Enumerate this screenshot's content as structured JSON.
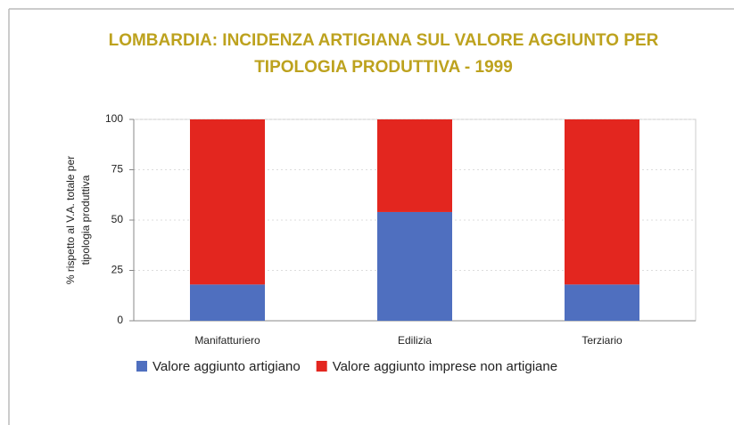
{
  "chart_data": {
    "type": "stacked_bar",
    "title": [
      "LOMBARDIA: INCIDENZA ARTIGIANA SUL VALORE AGGIUNTO PER",
      "TIPOLOGIA PRODUTTIVA - 1999"
    ],
    "y_label": [
      "% rispetto al V.A. totale per",
      "tipologia produttiva"
    ],
    "categories": [
      "Manifatturiero",
      "Edilizia",
      "Terziario"
    ],
    "series": [
      {
        "name": "Valore aggiunto artigiano",
        "color": "#4f6fbf",
        "values": [
          18,
          54,
          18
        ]
      },
      {
        "name": "Valore aggiunto imprese non artigiane",
        "color": "#e3261f",
        "values": [
          82,
          46,
          82
        ]
      }
    ],
    "ylim": [
      0,
      100
    ],
    "yticks": [
      0,
      25,
      50,
      75,
      100
    ],
    "grid": true
  }
}
